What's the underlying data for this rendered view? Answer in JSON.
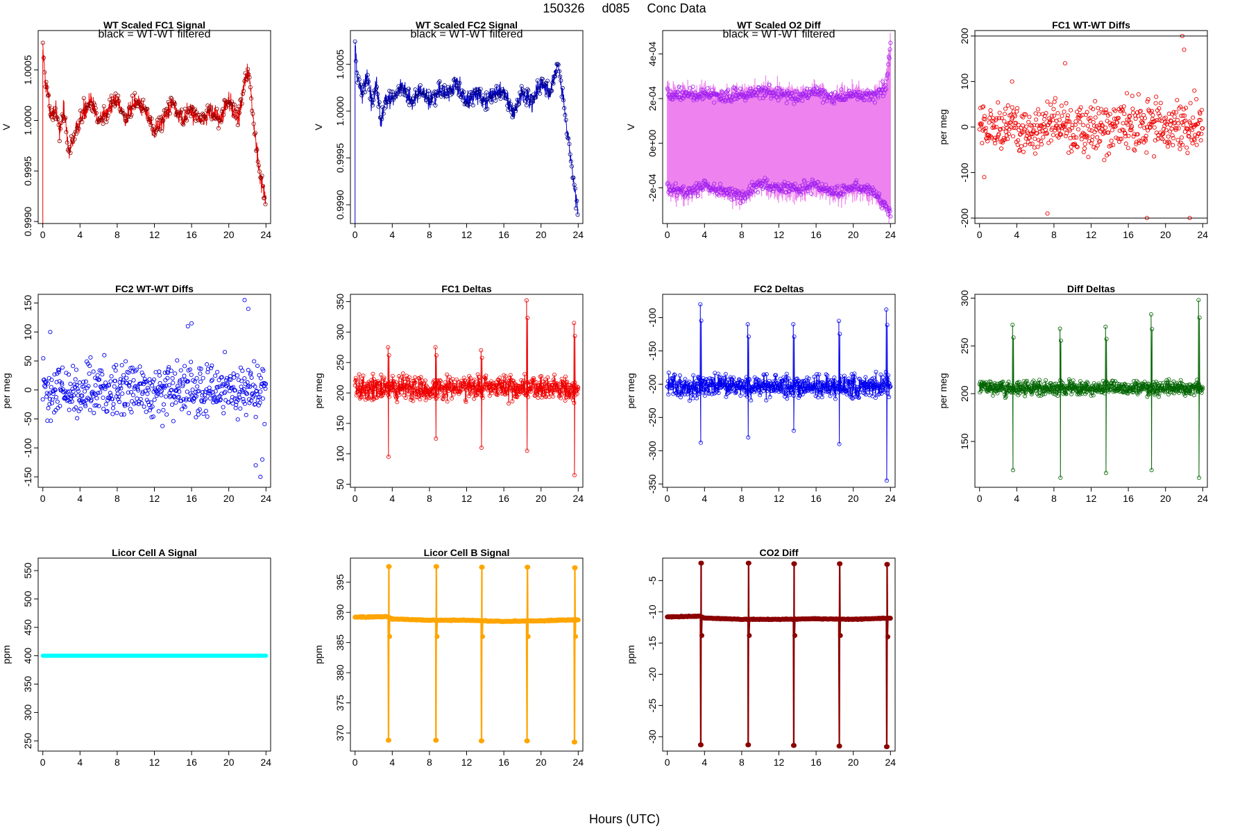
{
  "header": {
    "date": "150326",
    "day": "d085",
    "label": "Conc Data"
  },
  "footer": {
    "xlabel": "Hours (UTC)"
  },
  "chart_data": [
    {
      "id": "p0",
      "type": "line",
      "title": "WT Scaled FC1 Signal",
      "subtitle": "black = WT-WT filtered",
      "ylabel": "V",
      "xlim": [
        -0.5,
        24.5
      ],
      "ylim": [
        0.99898,
        1.00089
      ],
      "yticks": [
        0.999,
        0.9995,
        1.0,
        1.0005
      ],
      "ytick_labels": [
        "0.9990",
        "0.9995",
        "1.0000",
        "1.0005"
      ],
      "xticks": [
        0,
        4,
        8,
        12,
        16,
        20,
        24
      ],
      "color": "#ee0000",
      "style": "dense-signal",
      "series": [
        {
          "name": "signal",
          "x": [
            0,
            0.3,
            0.8,
            1.3,
            1.8,
            2.3,
            2.8,
            3.3,
            4,
            5,
            6,
            7,
            8,
            9,
            10,
            11,
            12,
            13,
            14,
            15,
            16,
            17,
            18,
            19,
            20,
            21,
            21.8,
            22.2,
            22.5,
            23,
            23.5,
            24
          ],
          "y": [
            1.0007,
            1.0004,
            1.0001,
            1.0001,
            0.9999,
            1.0001,
            0.9997,
            0.9998,
            1.0,
            1.0002,
            1.0,
            1.0001,
            1.0002,
            1.0,
            1.0002,
            1.0001,
            0.9999,
            1.0,
            1.0002,
            1.0,
            1.0001,
            1.0,
            1.0001,
            1.0,
            1.0002,
            1.0,
            1.0004,
            1.0005,
            1.0001,
            0.9997,
            0.9994,
            0.9992
          ]
        }
      ]
    },
    {
      "id": "p1",
      "type": "line",
      "title": "WT Scaled FC2 Signal",
      "subtitle": "black = WT-WT filtered",
      "ylabel": "V",
      "xlim": [
        -0.5,
        24.5
      ],
      "ylim": [
        0.9988,
        1.00086
      ],
      "yticks": [
        0.999,
        0.9995,
        1.0,
        1.0005
      ],
      "ytick_labels": [
        "0.9990",
        "0.9995",
        "1.0000",
        "1.0005"
      ],
      "xticks": [
        0,
        4,
        8,
        12,
        16,
        20,
        24
      ],
      "color": "#0000cc",
      "style": "dense-signal",
      "series": [
        {
          "name": "signal",
          "x": [
            0,
            0.3,
            0.8,
            1.3,
            1.8,
            2.3,
            2.8,
            3.3,
            4,
            5,
            6,
            7,
            8,
            9,
            10,
            11,
            12,
            13,
            14,
            15,
            16,
            17,
            18,
            19,
            20,
            21,
            21.8,
            22.3,
            22.8,
            23.3,
            24
          ],
          "y": [
            1.0007,
            1.0003,
            1.0002,
            1.0004,
            1.0001,
            1.0003,
            0.9999,
            1.0001,
            1.0001,
            1.0003,
            1.0001,
            1.0002,
            1.0001,
            1.0002,
            1.0002,
            1.0003,
            1.0001,
            1.0002,
            1.0001,
            1.0002,
            1.0002,
            1.0,
            1.0002,
            1.0001,
            1.0003,
            1.0002,
            1.0005,
            1.0002,
            0.9998,
            0.9994,
            0.9989
          ]
        }
      ]
    },
    {
      "id": "p2",
      "type": "line",
      "title": "WT Scaled O2 Diff",
      "subtitle": "black = WT-WT filtered",
      "ylabel": "V",
      "xlim": [
        -0.5,
        24.5
      ],
      "ylim": [
        -0.00036,
        0.000505
      ],
      "yticks": [
        -0.0002,
        0,
        0.0002,
        0.0004
      ],
      "ytick_labels": [
        "-2e-04",
        "0e+00",
        "2e-04",
        "4e-04"
      ],
      "xticks": [
        0,
        4,
        8,
        12,
        16,
        20,
        24
      ],
      "color": "#ee82ee",
      "point_color": "#a020f0",
      "style": "band",
      "series": [
        {
          "name": "upper",
          "x": [
            0,
            2,
            4,
            6,
            8,
            10,
            12,
            14,
            16,
            18,
            20,
            22,
            23.5,
            24
          ],
          "y": [
            0.00022,
            0.00021,
            0.00022,
            0.0002,
            0.00022,
            0.00023,
            0.00022,
            0.00021,
            0.00023,
            0.0002,
            0.00022,
            0.00021,
            0.00024,
            0.00045
          ]
        },
        {
          "name": "lower",
          "x": [
            0,
            2,
            4,
            6,
            8,
            10,
            12,
            14,
            16,
            18,
            20,
            22,
            23.5,
            24
          ],
          "y": [
            -0.0002,
            -0.00022,
            -0.00019,
            -0.00021,
            -0.00024,
            -0.00018,
            -0.0002,
            -0.00021,
            -0.00019,
            -0.00022,
            -0.0002,
            -0.00021,
            -0.00028,
            -0.00032
          ]
        }
      ]
    },
    {
      "id": "p3",
      "type": "scatter",
      "title": "FC1 WT-WT Diffs",
      "ylabel": "per meg",
      "xlim": [
        -0.5,
        24.5
      ],
      "ylim": [
        -212,
        212
      ],
      "yticks": [
        -200,
        -100,
        0,
        100,
        200
      ],
      "ytick_labels": [
        "-200",
        "-100",
        "0",
        "100",
        "200"
      ],
      "xticks": [
        0,
        4,
        8,
        12,
        16,
        20,
        24
      ],
      "color": "#ee0000",
      "style": "scatter-noise",
      "center": 0,
      "spread": 38,
      "hlines": [
        200,
        -200
      ],
      "outliers": {
        "x": [
          0.5,
          3.5,
          7.3,
          9.2,
          18.0,
          21.8,
          22.0,
          22.6,
          23.1
        ],
        "y": [
          -110,
          100,
          -190,
          140,
          -200,
          200,
          170,
          -200,
          80
        ]
      }
    },
    {
      "id": "p4",
      "type": "scatter",
      "title": "FC2 WT-WT Diffs",
      "ylabel": "per meg",
      "xlim": [
        -0.5,
        24.5
      ],
      "ylim": [
        -168,
        165
      ],
      "yticks": [
        -150,
        -100,
        -50,
        0,
        50,
        100,
        150
      ],
      "ytick_labels": [
        "-150",
        "-100",
        "-50",
        "0",
        "50",
        "100",
        "150"
      ],
      "xticks": [
        0,
        4,
        8,
        12,
        16,
        20,
        24
      ],
      "color": "#0000ee",
      "style": "scatter-noise",
      "center": 0,
      "spread": 32,
      "outliers": {
        "x": [
          0.8,
          15.6,
          16.0,
          21.7,
          22.1,
          22.9,
          23.4,
          23.6
        ],
        "y": [
          100,
          110,
          115,
          155,
          140,
          -130,
          -150,
          -120
        ]
      }
    },
    {
      "id": "p5",
      "type": "line",
      "title": "FC1 Deltas",
      "ylabel": "per meg",
      "xlim": [
        -0.5,
        24.5
      ],
      "ylim": [
        45,
        362
      ],
      "yticks": [
        50,
        100,
        150,
        200,
        250,
        300,
        350
      ],
      "ytick_labels": [
        "50",
        "100",
        "150",
        "200",
        "250",
        "300",
        "350"
      ],
      "xticks": [
        0,
        4,
        8,
        12,
        16,
        20,
        24
      ],
      "color": "#ee0000",
      "style": "delta-series",
      "center": 208,
      "spread": 14,
      "spikes": {
        "x": [
          3.6,
          8.7,
          13.6,
          18.5,
          23.6
        ],
        "high": [
          275,
          275,
          270,
          352,
          315
        ],
        "low": [
          95,
          125,
          110,
          105,
          65
        ]
      }
    },
    {
      "id": "p6",
      "type": "line",
      "title": "FC2 Deltas",
      "ylabel": "per meg",
      "xlim": [
        -0.5,
        24.5
      ],
      "ylim": [
        -355,
        -65
      ],
      "yticks": [
        -350,
        -300,
        -250,
        -200,
        -150,
        -100
      ],
      "ytick_labels": [
        "-350",
        "-300",
        "-250",
        "-200",
        "-150",
        "-100"
      ],
      "xticks": [
        0,
        4,
        8,
        12,
        16,
        20,
        24
      ],
      "color": "#0000ee",
      "style": "delta-series",
      "center": -203,
      "spread": 12,
      "spikes": {
        "x": [
          3.6,
          8.7,
          13.6,
          18.5,
          23.6
        ],
        "high": [
          -80,
          -110,
          -110,
          -105,
          -88
        ],
        "low": [
          -288,
          -280,
          -270,
          -290,
          -345
        ]
      }
    },
    {
      "id": "p7",
      "type": "line",
      "title": "Diff Deltas",
      "ylabel": "per meg",
      "xlim": [
        -0.5,
        24.5
      ],
      "ylim": [
        102,
        304
      ],
      "yticks": [
        150,
        200,
        250,
        300
      ],
      "ytick_labels": [
        "150",
        "200",
        "250",
        "300"
      ],
      "xticks": [
        0,
        4,
        8,
        12,
        16,
        20,
        24
      ],
      "color": "#006400",
      "style": "delta-series",
      "center": 206,
      "spread": 5,
      "spikes": {
        "x": [
          3.6,
          8.7,
          13.6,
          18.5,
          23.6
        ],
        "high": [
          272,
          268,
          270,
          283,
          298
        ],
        "low": [
          120,
          112,
          117,
          120,
          112
        ]
      }
    },
    {
      "id": "p8",
      "type": "line",
      "title": "Licor Cell A Signal",
      "ylabel": "ppm",
      "xlim": [
        -0.5,
        24.5
      ],
      "ylim": [
        232,
        572
      ],
      "yticks": [
        250,
        300,
        350,
        400,
        450,
        500,
        550
      ],
      "ytick_labels": [
        "250",
        "300",
        "350",
        "400",
        "450",
        "500",
        "550"
      ],
      "xticks": [
        0,
        4,
        8,
        12,
        16,
        20,
        24
      ],
      "color": "#00ffff",
      "style": "flat-thick",
      "series": [
        {
          "name": "cell A",
          "x": [
            0,
            24
          ],
          "y": [
            400,
            400
          ]
        }
      ]
    },
    {
      "id": "p9",
      "type": "line",
      "title": "Licor Cell B Signal",
      "ylabel": "ppm",
      "xlim": [
        -0.5,
        24.5
      ],
      "ylim": [
        367,
        399
      ],
      "yticks": [
        370,
        375,
        380,
        385,
        390,
        395
      ],
      "ytick_labels": [
        "370",
        "375",
        "380",
        "385",
        "390",
        "395"
      ],
      "xticks": [
        0,
        4,
        8,
        12,
        16,
        20,
        24
      ],
      "color": "#ffa500",
      "style": "step-spikes",
      "baseline": {
        "x": [
          0,
          3.5,
          4,
          8,
          12,
          16,
          20,
          24
        ],
        "y": [
          389.2,
          389.3,
          388.9,
          388.7,
          388.7,
          388.5,
          388.6,
          388.8
        ]
      },
      "spikes": {
        "x": [
          3.6,
          8.7,
          13.6,
          18.5,
          23.6
        ],
        "high": [
          397.6,
          397.6,
          397.5,
          397.5,
          397.4
        ],
        "low": [
          368.8,
          368.8,
          368.7,
          368.7,
          368.5
        ],
        "after": [
          386,
          386,
          386,
          386,
          386
        ]
      }
    },
    {
      "id": "p10",
      "type": "line",
      "title": "CO2 Diff",
      "ylabel": "ppm",
      "xlim": [
        -0.5,
        24.5
      ],
      "ylim": [
        -32.3,
        -1.4
      ],
      "yticks": [
        -30,
        -25,
        -20,
        -15,
        -10,
        -5
      ],
      "ytick_labels": [
        "-30",
        "-25",
        "-20",
        "-15",
        "-10",
        "-5"
      ],
      "xticks": [
        0,
        4,
        8,
        12,
        16,
        20,
        24
      ],
      "color": "#8b0000",
      "style": "step-spikes",
      "baseline": {
        "x": [
          0,
          3.5,
          4,
          8,
          12,
          16,
          20,
          24
        ],
        "y": [
          -10.8,
          -10.7,
          -11.0,
          -11.2,
          -11.2,
          -11.1,
          -11.2,
          -11.0
        ]
      },
      "spikes": {
        "x": [
          3.6,
          8.7,
          13.6,
          18.5,
          23.6
        ],
        "high": [
          -2.2,
          -2.2,
          -2.3,
          -2.3,
          -2.4
        ],
        "low": [
          -31.3,
          -31.3,
          -31.4,
          -31.5,
          -31.6
        ],
        "after": [
          -13.8,
          -13.8,
          -13.8,
          -13.8,
          -14.0
        ]
      }
    }
  ]
}
